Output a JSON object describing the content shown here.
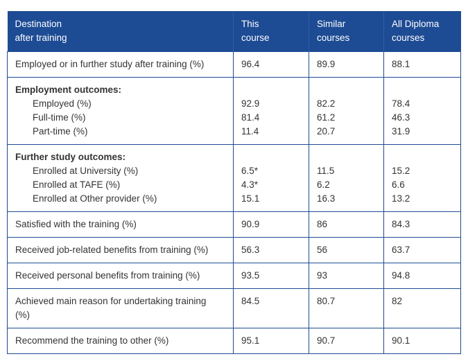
{
  "header": {
    "destination_line1": "Destination",
    "destination_line2": "after training",
    "this_line1": "This",
    "this_line2": "course",
    "similar_line1": "Similar",
    "similar_line2": "courses",
    "all_line1": "All Diploma",
    "all_line2": "courses"
  },
  "rows": {
    "employed_or_study": {
      "label": "Employed or in further study after training (%)",
      "this": "96.4",
      "similar": "89.9",
      "all": "88.1"
    },
    "employment": {
      "title": "Employment outcomes:",
      "items": [
        {
          "label": "Employed (%)",
          "this": "92.9",
          "similar": "82.2",
          "all": "78.4"
        },
        {
          "label": "Full-time (%)",
          "this": "81.4",
          "similar": "61.2",
          "all": "46.3"
        },
        {
          "label": "Part-time (%)",
          "this": "11.4",
          "similar": "20.7",
          "all": "31.9"
        }
      ]
    },
    "further_study": {
      "title": "Further study outcomes:",
      "items": [
        {
          "label": "Enrolled at University (%)",
          "this": "6.5*",
          "similar": "11.5",
          "all": "15.2"
        },
        {
          "label": "Enrolled at TAFE (%)",
          "this": "4.3*",
          "similar": "6.2",
          "all": "6.6"
        },
        {
          "label": "Enrolled at Other provider (%)",
          "this": "15.1",
          "similar": "16.3",
          "all": "13.2"
        }
      ]
    },
    "satisfied": {
      "label": "Satisfied with the training (%)",
      "this": "90.9",
      "similar": "86",
      "all": "84.3"
    },
    "job_benefits": {
      "label": "Received job-related benefits from training (%)",
      "this": "56.3",
      "similar": "56",
      "all": "63.7"
    },
    "personal_benefits": {
      "label": "Received personal benefits from training (%)",
      "this": "93.5",
      "similar": "93",
      "all": "94.8"
    },
    "main_reason": {
      "label_line1": "Achieved main reason for undertaking training",
      "label_line2": "(%)",
      "this": "84.5",
      "similar": "80.7",
      "all": "82"
    },
    "recommend": {
      "label": "Recommend the training to other (%)",
      "this": "95.1",
      "similar": "90.7",
      "all": "90.1"
    }
  },
  "colors": {
    "header_bg": "#1d4b94",
    "border": "#1d4b94",
    "text": "#333333"
  }
}
